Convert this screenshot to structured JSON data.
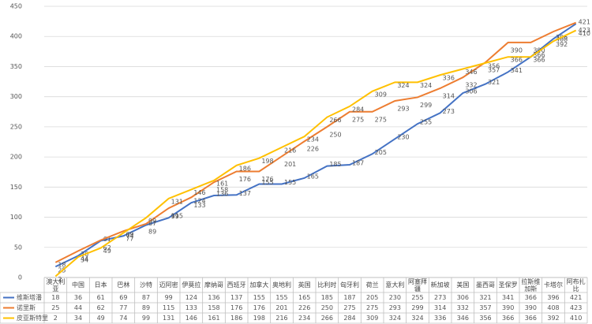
{
  "chart_data": {
    "type": "line",
    "categories": [
      "澳大利亚",
      "中国",
      "日本",
      "巴林",
      "沙特",
      "迈阿密",
      "伊莫拉",
      "摩纳哥",
      "西班牙",
      "加拿大",
      "奥地利",
      "英国",
      "比利时",
      "匈牙利",
      "荷兰",
      "意大利",
      "阿塞拜疆",
      "新加坡",
      "美国",
      "墨西哥",
      "圣保罗",
      "拉斯维加斯",
      "卡塔尔",
      "阿布扎比"
    ],
    "series": [
      {
        "name": "维斯塔潘",
        "color": "#4472c4",
        "values": [
          18,
          36,
          61,
          69,
          87,
          99,
          124,
          136,
          137,
          155,
          155,
          165,
          185,
          187,
          205,
          230,
          255,
          273,
          306,
          321,
          341,
          366,
          396,
          421
        ]
      },
      {
        "name": "诺里斯",
        "color": "#ed7d31",
        "values": [
          25,
          44,
          62,
          77,
          89,
          115,
          133,
          158,
          176,
          176,
          201,
          226,
          250,
          275,
          275,
          293,
          299,
          314,
          332,
          357,
          390,
          390,
          408,
          423
        ]
      },
      {
        "name": "皮亚斯特里",
        "color": "#ffc000",
        "values": [
          2,
          34,
          49,
          74,
          99,
          131,
          146,
          161,
          186,
          198,
          216,
          234,
          266,
          284,
          309,
          324,
          324,
          336,
          346,
          356,
          366,
          366,
          392,
          410
        ]
      }
    ],
    "ylim": [
      0,
      450
    ],
    "yticks": [
      0,
      50,
      100,
      150,
      200,
      250,
      300,
      350,
      400,
      450
    ],
    "grid": true
  }
}
